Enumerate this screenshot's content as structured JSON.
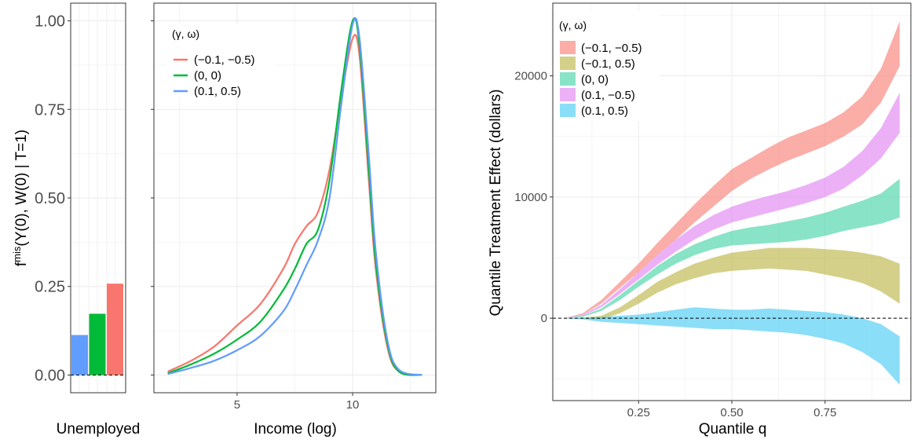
{
  "colors": {
    "red": "#F8766D",
    "green": "#00BA38",
    "blue": "#619CFF",
    "olive": "#B7B13A",
    "teal": "#3BD0A0",
    "pink": "#E07BF2",
    "cyan": "#3DC8F2",
    "grid": "#ebebeb",
    "panel_border": "#333333"
  },
  "chart_data": [
    {
      "type": "bar",
      "panel": "unemployed",
      "xlabel": "Unemployed",
      "ylabel_main": "f",
      "ylabel_sup": "mis",
      "ylabel_rest": "(Y(0), W(0) | T=1)",
      "ylim": [
        -0.05,
        1.05
      ],
      "y_ticks": [
        "0.00",
        "0.25",
        "0.50",
        "0.75",
        "1.00"
      ],
      "y_tick_values": [
        0,
        0.25,
        0.5,
        0.75,
        1.0
      ],
      "reference_line_y": 0,
      "series": [
        {
          "name": "(0.1, 0.5)",
          "value": 0.113,
          "color": "#619CFF"
        },
        {
          "name": "(0, 0)",
          "value": 0.173,
          "color": "#00BA38"
        },
        {
          "name": "(-0.1, -0.5)",
          "value": 0.258,
          "color": "#F8766D"
        }
      ]
    },
    {
      "type": "line",
      "panel": "income_density",
      "xlabel": "Income (log)",
      "xlim": [
        1.4,
        13.6
      ],
      "x_ticks": [
        "5",
        "10"
      ],
      "x_tick_values": [
        5,
        10
      ],
      "ylim": [
        -0.05,
        1.05
      ],
      "legend_title": "(γ, ω)",
      "legend_position": "top-left",
      "series": [
        {
          "name": "(−0.1, −0.5)",
          "color": "#F8766D",
          "points": [
            [
              2,
              0.01
            ],
            [
              3,
              0.04
            ],
            [
              4,
              0.08
            ],
            [
              5,
              0.14
            ],
            [
              6,
              0.2
            ],
            [
              7,
              0.3
            ],
            [
              7.5,
              0.37
            ],
            [
              8,
              0.42
            ],
            [
              8.5,
              0.46
            ],
            [
              9,
              0.58
            ],
            [
              9.5,
              0.78
            ],
            [
              10,
              0.95
            ],
            [
              10.3,
              0.9
            ],
            [
              10.7,
              0.55
            ],
            [
              11,
              0.3
            ],
            [
              11.5,
              0.08
            ],
            [
              12,
              0.01
            ],
            [
              13,
              0.0
            ]
          ]
        },
        {
          "name": "(0, 0)",
          "color": "#00BA38",
          "points": [
            [
              2,
              0.005
            ],
            [
              3,
              0.03
            ],
            [
              4,
              0.06
            ],
            [
              5,
              0.1
            ],
            [
              6,
              0.15
            ],
            [
              7,
              0.24
            ],
            [
              7.5,
              0.3
            ],
            [
              8,
              0.37
            ],
            [
              8.5,
              0.41
            ],
            [
              9,
              0.55
            ],
            [
              9.5,
              0.8
            ],
            [
              10,
              1.0
            ],
            [
              10.3,
              0.93
            ],
            [
              10.7,
              0.58
            ],
            [
              11,
              0.32
            ],
            [
              11.5,
              0.09
            ],
            [
              12,
              0.01
            ],
            [
              13,
              0.0
            ]
          ]
        },
        {
          "name": "(0.1, 0.5)",
          "color": "#619CFF",
          "points": [
            [
              2,
              0.003
            ],
            [
              3,
              0.02
            ],
            [
              4,
              0.04
            ],
            [
              5,
              0.07
            ],
            [
              6,
              0.11
            ],
            [
              7,
              0.18
            ],
            [
              7.5,
              0.24
            ],
            [
              8,
              0.31
            ],
            [
              8.5,
              0.38
            ],
            [
              9,
              0.5
            ],
            [
              9.5,
              0.76
            ],
            [
              10,
              0.99
            ],
            [
              10.3,
              0.95
            ],
            [
              10.7,
              0.62
            ],
            [
              11,
              0.35
            ],
            [
              11.5,
              0.1
            ],
            [
              12,
              0.015
            ],
            [
              13,
              0.0
            ]
          ]
        }
      ]
    },
    {
      "type": "area",
      "panel": "quantile_treatment_effect",
      "xlabel": "Quantile q",
      "ylabel": "Quantile Treatment Effect (dollars)",
      "xlim": [
        0.02,
        0.98
      ],
      "ylim": [
        -6800,
        26000
      ],
      "x_ticks": [
        "0.25",
        "0.50",
        "0.75"
      ],
      "x_tick_values": [
        0.25,
        0.5,
        0.75
      ],
      "y_ticks": [
        "0",
        "10000",
        "20000"
      ],
      "y_tick_values": [
        0,
        10000,
        20000
      ],
      "reference_line_y": 0,
      "legend_title": "(γ, ω)",
      "legend_position": "top-left",
      "x": [
        0.05,
        0.1,
        0.15,
        0.2,
        0.25,
        0.3,
        0.35,
        0.4,
        0.45,
        0.5,
        0.55,
        0.6,
        0.65,
        0.7,
        0.75,
        0.8,
        0.85,
        0.9,
        0.95
      ],
      "series": [
        {
          "name": "(−0.1, −0.5)",
          "color": "#F8766D",
          "lower": [
            0,
            300,
            1200,
            2500,
            3800,
            5200,
            6500,
            7900,
            9200,
            10500,
            11500,
            12300,
            13000,
            13600,
            14200,
            15000,
            16000,
            17800,
            20800
          ],
          "upper": [
            0,
            400,
            1500,
            3000,
            4500,
            6200,
            7800,
            9400,
            10900,
            12300,
            13200,
            14100,
            14900,
            15500,
            16100,
            17000,
            18300,
            20600,
            24500
          ]
        },
        {
          "name": "(−0.1, 0.5)",
          "color": "#B7B13A",
          "lower": [
            0,
            -50,
            -100,
            400,
            1200,
            2100,
            2800,
            3300,
            3700,
            3900,
            4000,
            4100,
            4000,
            3900,
            3600,
            3300,
            2900,
            2200,
            1200
          ],
          "upper": [
            0,
            50,
            200,
            900,
            1900,
            3000,
            3800,
            4500,
            5000,
            5400,
            5600,
            5800,
            5800,
            5800,
            5700,
            5600,
            5400,
            5100,
            4500
          ]
        },
        {
          "name": "(0, 0)",
          "color": "#3BD0A0",
          "lower": [
            0,
            100,
            600,
            1500,
            2600,
            3600,
            4500,
            5200,
            5700,
            6000,
            6100,
            6200,
            6300,
            6500,
            6800,
            7200,
            7500,
            7800,
            8300
          ],
          "upper": [
            0,
            200,
            800,
            1900,
            3100,
            4300,
            5300,
            6100,
            6700,
            7200,
            7500,
            7700,
            8000,
            8300,
            8700,
            9200,
            9700,
            10300,
            11500
          ]
        },
        {
          "name": "(0.1, −0.5)",
          "color": "#E07BF2",
          "lower": [
            0,
            200,
            900,
            2000,
            3200,
            4400,
            5500,
            6500,
            7300,
            7900,
            8300,
            8700,
            9100,
            9500,
            10000,
            10700,
            11800,
            13200,
            15300
          ],
          "upper": [
            0,
            300,
            1100,
            2400,
            3800,
            5200,
            6500,
            7600,
            8500,
            9200,
            9700,
            10100,
            10500,
            11000,
            11600,
            12500,
            13800,
            15700,
            18600
          ]
        },
        {
          "name": "(0.1, 0.5)",
          "color": "#3DC8F2",
          "lower": [
            0,
            -100,
            -300,
            -400,
            -500,
            -600,
            -700,
            -800,
            -900,
            -900,
            -1000,
            -1100,
            -1200,
            -1400,
            -1700,
            -2100,
            -2800,
            -3800,
            -5500
          ],
          "upper": [
            0,
            50,
            100,
            200,
            300,
            500,
            700,
            900,
            800,
            700,
            700,
            800,
            700,
            600,
            500,
            300,
            0,
            -500,
            -1500
          ]
        }
      ]
    }
  ]
}
